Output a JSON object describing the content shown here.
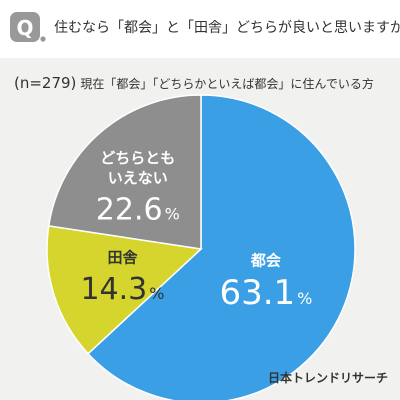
{
  "question": {
    "badge": "Q.",
    "text": "住むなら「都会」と「田舎」どちらが良いと思いますか？"
  },
  "subtitle": {
    "n": "(n=279)",
    "text": "現在「都会」「どちらかといえば都会」に住んでいる方"
  },
  "brand": "日本トレンドリサーチ",
  "colors": {
    "background": "#f1f1ef",
    "badge": "#999999",
    "urban": "#3b9fe6",
    "rural": "#d5d52e",
    "neither": "#8e8e8e"
  },
  "chart_data": {
    "type": "pie",
    "unit": "%",
    "slices": [
      {
        "label": "都会",
        "value": 63.1,
        "color": "#3b9fe6"
      },
      {
        "label": "田舎",
        "value": 14.3,
        "color": "#d5d52e"
      },
      {
        "label": "どちらともいえない",
        "label_lines": [
          "どちらとも",
          "いえない"
        ],
        "value": 22.6,
        "color": "#8e8e8e"
      }
    ]
  }
}
